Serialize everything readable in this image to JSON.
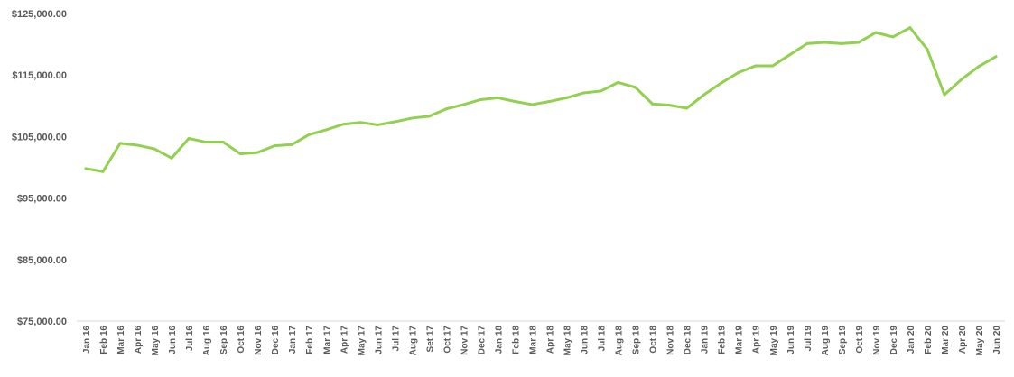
{
  "chart_data": {
    "type": "line",
    "title": "",
    "xlabel": "",
    "ylabel": "",
    "ylim": [
      75000,
      125000
    ],
    "grid": false,
    "legend": "none",
    "y_ticks": [
      {
        "value": 125000,
        "label": "$125,000.00"
      },
      {
        "value": 115000,
        "label": "$115,000.00"
      },
      {
        "value": 105000,
        "label": "$105,000.00"
      },
      {
        "value": 95000,
        "label": "$95,000.00"
      },
      {
        "value": 85000,
        "label": "$85,000.00"
      },
      {
        "value": 75000,
        "label": "$75,000.00"
      }
    ],
    "categories": [
      "Jan 16",
      "Feb 16",
      "Mar 16",
      "Apr 16",
      "May 16",
      "Jun 16",
      "Jul 16",
      "Aug 16",
      "Sep 16",
      "Oct 16",
      "Nov 16",
      "Dec 16",
      "Jan 17",
      "Feb 17",
      "Mar 17",
      "Apr 17",
      "May 17",
      "Jun 17",
      "Jul 17",
      "Aug 17",
      "Set 17",
      "Oct 17",
      "Nov 17",
      "Dec 17",
      "Jan 18",
      "Feb 18",
      "Mar 18",
      "Apr 18",
      "May 18",
      "Jun 18",
      "Jul 18",
      "Aug 18",
      "Sep 18",
      "Oct 18",
      "Nov 18",
      "Dec 18",
      "Jan 19",
      "Feb 19",
      "Mar 19",
      "Apr 19",
      "May 19",
      "Jun 19",
      "Jul 19",
      "Aug 19",
      "Sep 19",
      "Oct 19",
      "Nov 19",
      "Dec 19",
      "Jan 20",
      "Feb 20",
      "Mar 20",
      "Apr 20",
      "May 20",
      "Jun 20"
    ],
    "series": [
      {
        "color": "#92D050",
        "values": [
          99800,
          99300,
          103900,
          103600,
          103000,
          101500,
          104700,
          104100,
          104100,
          102200,
          102400,
          103500,
          103700,
          105300,
          106100,
          107000,
          107300,
          106900,
          107400,
          108000,
          108300,
          109500,
          110200,
          111000,
          111300,
          110700,
          110200,
          110700,
          111300,
          112100,
          112400,
          113800,
          113000,
          110300,
          110100,
          109600,
          111800,
          113700,
          115400,
          116500,
          116500,
          118300,
          120100,
          120300,
          120100,
          120300,
          121900,
          121200,
          122700,
          119200,
          111800,
          114300,
          116400,
          118000
        ]
      }
    ]
  }
}
